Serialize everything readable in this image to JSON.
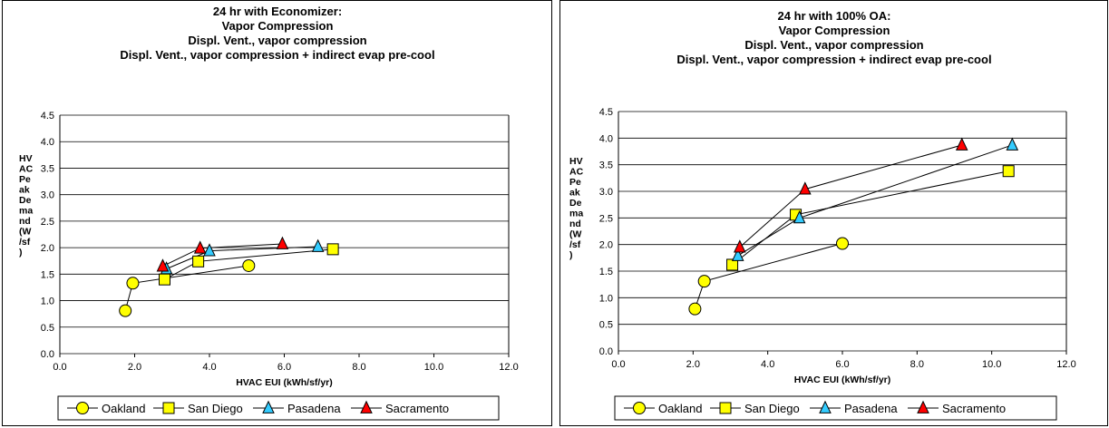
{
  "chart_data": [
    {
      "type": "line",
      "title_lines": [
        "24 hr with Economizer:",
        "Vapor Compression",
        "Displ. Vent., vapor compression",
        "Displ. Vent., vapor compression + indirect evap pre-cool"
      ],
      "xlabel": "HVAC EUI (kWh/sf/yr)",
      "ylabel_lines": [
        "HV",
        "AC",
        "Pe",
        "ak",
        "De",
        "ma",
        "nd",
        "(W",
        "/sf",
        ")"
      ],
      "xlim": [
        0,
        12
      ],
      "ylim": [
        0,
        4.5
      ],
      "x_ticks": [
        "0.0",
        "2.0",
        "4.0",
        "6.0",
        "8.0",
        "10.0",
        "12.0"
      ],
      "y_ticks": [
        "0.0",
        "0.5",
        "1.0",
        "1.5",
        "2.0",
        "2.5",
        "3.0",
        "3.5",
        "4.0",
        "4.5"
      ],
      "grid": "horizontal",
      "legend_position": "bottom",
      "series": [
        {
          "name": "Oakland",
          "marker": "circle",
          "color": "#ffff00",
          "points": [
            [
              1.75,
              0.81
            ],
            [
              1.95,
              1.33
            ],
            [
              5.05,
              1.66
            ]
          ]
        },
        {
          "name": "San Diego",
          "marker": "square",
          "color": "#ffff00",
          "points": [
            [
              2.8,
              1.4
            ],
            [
              3.7,
              1.74
            ],
            [
              7.3,
              1.97
            ]
          ]
        },
        {
          "name": "Pasadena",
          "marker": "triangle",
          "color": "#33ccff",
          "points": [
            [
              2.85,
              1.6
            ],
            [
              4.0,
              1.94
            ],
            [
              6.9,
              2.02
            ]
          ]
        },
        {
          "name": "Sacramento",
          "marker": "triangle",
          "color": "#ff0000",
          "points": [
            [
              2.75,
              1.65
            ],
            [
              3.75,
              1.99
            ],
            [
              5.95,
              2.07
            ]
          ]
        }
      ]
    },
    {
      "type": "line",
      "title_lines": [
        "24 hr with 100% OA:",
        "Vapor Compression",
        "Displ. Vent., vapor compression",
        "Displ. Vent., vapor compression + indirect evap pre-cool"
      ],
      "xlabel": "HVAC EUI (kWh/sf/yr)",
      "ylabel_lines": [
        "HV",
        "AC",
        "Pe",
        "ak",
        "De",
        "ma",
        "nd",
        "(W",
        "/sf",
        ")"
      ],
      "xlim": [
        0,
        12
      ],
      "ylim": [
        0,
        4.5
      ],
      "x_ticks": [
        "0.0",
        "2.0",
        "4.0",
        "6.0",
        "8.0",
        "10.0",
        "12.0"
      ],
      "y_ticks": [
        "0.0",
        "0.5",
        "1.0",
        "1.5",
        "2.0",
        "2.5",
        "3.0",
        "3.5",
        "4.0",
        "4.5"
      ],
      "grid": "horizontal",
      "legend_position": "bottom",
      "series": [
        {
          "name": "Oakland",
          "marker": "circle",
          "color": "#ffff00",
          "points": [
            [
              2.05,
              0.79
            ],
            [
              2.3,
              1.31
            ],
            [
              6.0,
              2.02
            ]
          ]
        },
        {
          "name": "San Diego",
          "marker": "square",
          "color": "#ffff00",
          "points": [
            [
              3.05,
              1.62
            ],
            [
              4.75,
              2.56
            ],
            [
              10.45,
              3.38
            ]
          ]
        },
        {
          "name": "Pasadena",
          "marker": "triangle",
          "color": "#33ccff",
          "points": [
            [
              3.2,
              1.79
            ],
            [
              4.85,
              2.5
            ],
            [
              10.55,
              3.87
            ]
          ]
        },
        {
          "name": "Sacramento",
          "marker": "triangle",
          "color": "#ff0000",
          "points": [
            [
              3.25,
              1.95
            ],
            [
              5.0,
              3.04
            ],
            [
              9.2,
              3.87
            ]
          ]
        }
      ]
    }
  ]
}
